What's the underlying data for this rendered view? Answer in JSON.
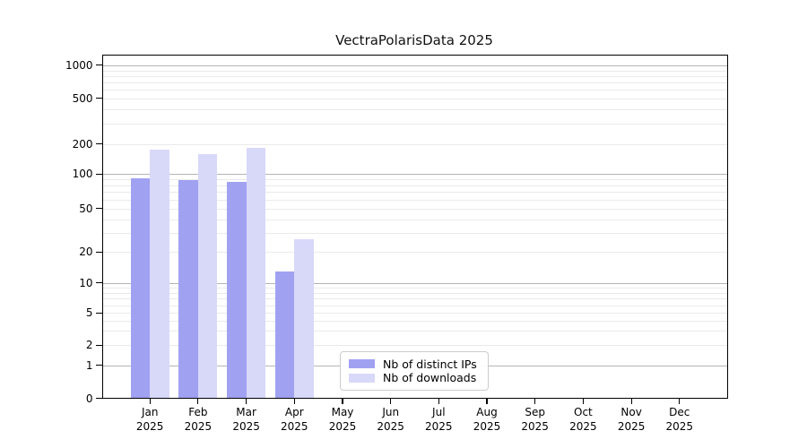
{
  "chart_data": {
    "type": "bar",
    "title": "VectraPolarisData 2025",
    "categories": [
      "Jan 2025",
      "Feb 2025",
      "Mar 2025",
      "Apr 2025",
      "May 2025",
      "Jun 2025",
      "Jul 2025",
      "Aug 2025",
      "Sep 2025",
      "Oct 2025",
      "Nov 2025",
      "Dec 2025"
    ],
    "series": [
      {
        "name": "Nb of distinct IPs",
        "color": "#a1a1f2",
        "values": [
          92,
          88,
          85,
          13,
          0,
          0,
          0,
          0,
          0,
          0,
          0,
          0
        ]
      },
      {
        "name": "Nb of downloads",
        "color": "#d8d8f9",
        "values": [
          177,
          158,
          185,
          26,
          0,
          0,
          0,
          0,
          0,
          0,
          0,
          0
        ]
      }
    ],
    "yscale": "symlog",
    "yticks": [
      0,
      1,
      2,
      5,
      10,
      20,
      50,
      100,
      200,
      500,
      1000
    ],
    "ylim": [
      0,
      1250
    ],
    "grid": true,
    "legend_position": "lower-center",
    "axis_color": "#000000",
    "major_grid_color": "#b4b4b4",
    "minor_grid_color": "#eaeaea"
  }
}
